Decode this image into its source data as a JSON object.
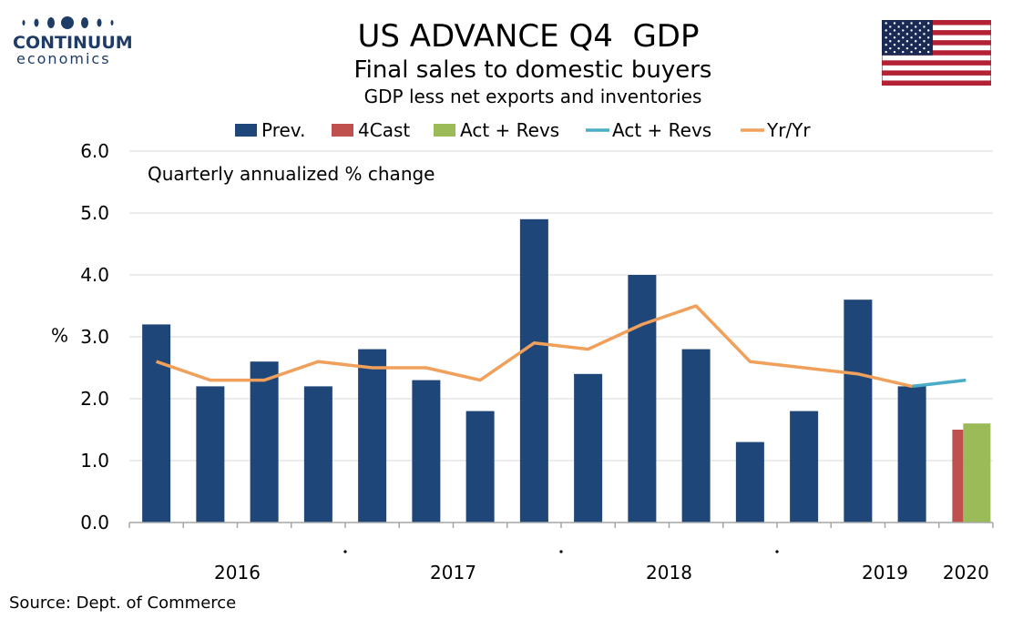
{
  "header": {
    "logo_main": "CONTINUUM",
    "logo_sub": "economics",
    "title": "US ADVANCE Q4  GDP",
    "subtitle": "Final sales to domestic buyers",
    "subtitle2": "GDP less net exports and inventories"
  },
  "footer": {
    "source": "Source: Dept. of Commerce"
  },
  "icons": {
    "logo": "continuum-dots-icon",
    "flag": "us-flag-icon"
  },
  "colors": {
    "prev": "#1f4678",
    "forecast": "#c0504d",
    "actual_bar": "#9bbb59",
    "actual_line": "#4bacc6",
    "yoy": "#f0a05a",
    "logo": "#1f3c66"
  },
  "chart_data": {
    "type": "bar",
    "annotation": "Quarterly annualized % change",
    "ylabel": "%",
    "ylim": [
      0,
      6
    ],
    "yticks": [
      "0.0",
      "1.0",
      "2.0",
      "3.0",
      "4.0",
      "5.0",
      "6.0"
    ],
    "grid": true,
    "legend_position": "top",
    "legend": [
      "Prev.",
      "4Cast",
      "Act + Revs",
      "Act + Revs",
      "Yr/Yr"
    ],
    "year_labels": [
      {
        "label": "2016",
        "after_quarter": 1.5
      },
      {
        "label": "2017",
        "after_quarter": 5.5
      },
      {
        "label": "2018",
        "after_quarter": 9.5
      },
      {
        "label": "2019",
        "after_quarter": 13.5
      },
      {
        "label": "2020",
        "after_quarter": 15
      }
    ],
    "year_separators": [
      3.5,
      7.5,
      11.5
    ],
    "series": [
      {
        "name": "Prev.",
        "kind": "bar",
        "values": [
          3.2,
          2.2,
          2.6,
          2.2,
          2.8,
          2.3,
          1.8,
          4.9,
          2.4,
          4.0,
          2.8,
          1.3,
          1.8,
          3.6,
          2.2,
          null
        ]
      },
      {
        "name": "4Cast",
        "kind": "bar",
        "values": [
          null,
          null,
          null,
          null,
          null,
          null,
          null,
          null,
          null,
          null,
          null,
          null,
          null,
          null,
          null,
          1.5
        ]
      },
      {
        "name": "Act + Revs",
        "kind": "bar",
        "values": [
          null,
          null,
          null,
          null,
          null,
          null,
          null,
          null,
          null,
          null,
          null,
          null,
          null,
          null,
          null,
          1.6
        ]
      },
      {
        "name": "Act + Revs",
        "kind": "line",
        "values": [
          null,
          null,
          null,
          null,
          null,
          null,
          null,
          null,
          null,
          null,
          null,
          null,
          null,
          null,
          2.2,
          2.3
        ]
      },
      {
        "name": "Yr/Yr",
        "kind": "line",
        "values": [
          2.6,
          2.3,
          2.3,
          2.6,
          2.5,
          2.5,
          2.3,
          2.9,
          2.8,
          3.2,
          3.5,
          2.6,
          2.5,
          2.4,
          2.2,
          null
        ]
      }
    ]
  }
}
